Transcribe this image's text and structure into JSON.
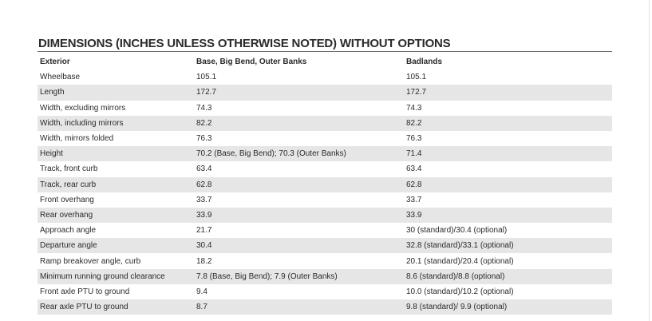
{
  "title": "DIMENSIONS (INCHES UNLESS OTHERWISE NOTED) WITHOUT OPTIONS",
  "columns": [
    "Exterior",
    "Base, Big Bend, Outer Banks",
    "Badlands"
  ],
  "rows": [
    [
      "Wheelbase",
      "105.1",
      "105.1"
    ],
    [
      "Length",
      "172.7",
      "172.7"
    ],
    [
      "Width, excluding mirrors",
      "74.3",
      "74.3"
    ],
    [
      "Width, including mirrors",
      "82.2",
      "82.2"
    ],
    [
      "Width, mirrors folded",
      "76.3",
      "76.3"
    ],
    [
      "Height",
      "70.2 (Base, Big Bend); 70.3 (Outer Banks)",
      "71.4"
    ],
    [
      "Track, front curb",
      "63.4",
      "63.4"
    ],
    [
      "Track, rear curb",
      "62.8",
      "62.8"
    ],
    [
      "Front overhang",
      "33.7",
      "33.7"
    ],
    [
      "Rear overhang",
      "33.9",
      "33.9"
    ],
    [
      "Approach angle",
      "21.7",
      "30 (standard)/30.4 (optional)"
    ],
    [
      "Departure angle",
      "30.4",
      "32.8 (standard)/33.1 (optional)"
    ],
    [
      "Ramp breakover angle, curb",
      "18.2",
      "20.1 (standard)/20.4 (optional)"
    ],
    [
      "Minimum running ground clearance",
      "7.8 (Base, Big Bend); 7.9 (Outer Banks)",
      "8.6 (standard)/8.8 (optional)"
    ],
    [
      "Front axle PTU to ground",
      "9.4",
      "10.0 (standard)/10.2 (optional)"
    ],
    [
      "Rear axle PTU to ground",
      "8.7",
      "9.8 (standard)/ 9.9 (optional)"
    ]
  ]
}
